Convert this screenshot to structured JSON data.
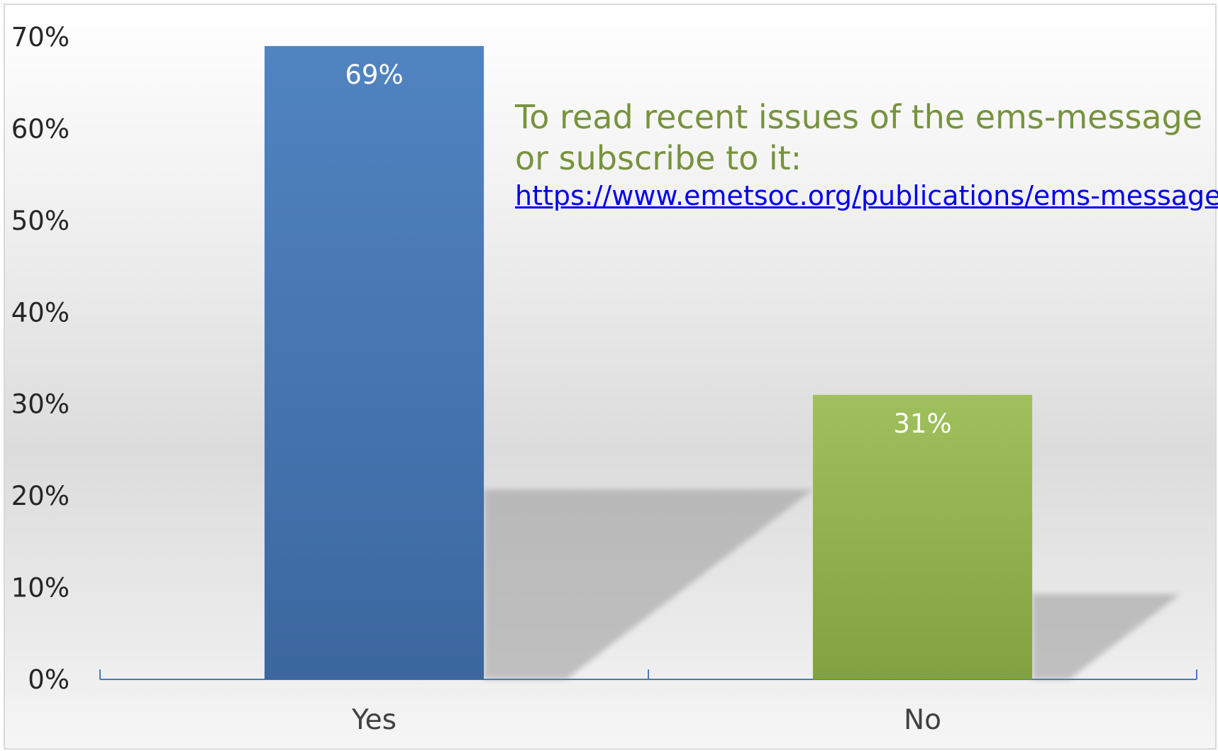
{
  "chart_data": {
    "type": "bar",
    "categories": [
      "Yes",
      "No"
    ],
    "values": [
      69,
      31
    ],
    "data_labels": [
      "69%",
      "31%"
    ],
    "colors": [
      "#4a7bb7",
      "#9bbb59"
    ],
    "ylim": [
      0,
      70
    ],
    "yticks": [
      "0%",
      "10%",
      "20%",
      "30%",
      "40%",
      "50%",
      "60%",
      "70%"
    ],
    "grid": false,
    "legend": "none"
  },
  "annotation": {
    "text": "To read recent issues of the ems-message or subscribe to it:",
    "link": "https://www.emetsoc.org/publications/ems-message"
  }
}
